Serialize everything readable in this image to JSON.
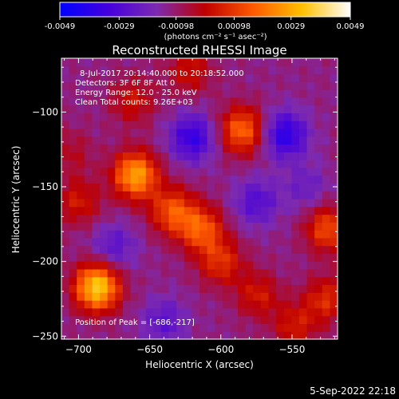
{
  "colorbar": {
    "ticks": [
      "-0.0049",
      "-0.0029",
      "-0.00098",
      "0.00098",
      "0.0029",
      "0.0049"
    ],
    "units_line": "(photons cm⁻² s⁻¹ asec⁻²)"
  },
  "annotations": {
    "time_range": "8-Jul-2017 20:14:40.000 to 20:18:52.000",
    "detectors": "Detectors: 3F 6F 8F Att 0",
    "energy": "Energy Range: 12.0 - 25.0 keV",
    "clean": "Clean     Total counts: 9.26E+03",
    "peak": "Position of Peak = [-686,-217]"
  },
  "footer": {
    "timestamp": "5-Sep-2022 22:18"
  },
  "colors": {
    "background": "#000000",
    "axes": "#ffffff"
  },
  "chart_data": {
    "type": "heatmap",
    "title": "Reconstructed RHESSI Image",
    "xlabel": "Heliocentric X (arcsec)",
    "ylabel": "Heliocentric Y (arcsec)",
    "xlim": [
      -712,
      -518
    ],
    "ylim": [
      -252,
      -64
    ],
    "x_ticks": [
      -700,
      -650,
      -600,
      -550
    ],
    "y_ticks": [
      -250,
      -200,
      -150,
      -100
    ],
    "colorbar_range": [
      -0.0049,
      0.0049
    ],
    "colormap": [
      "#0000ff",
      "#4400dd",
      "#7d2ab0",
      "#be0000",
      "#ff5a00",
      "#ffc000",
      "#ffffff"
    ],
    "peak_position": [
      -686,
      -217
    ],
    "sources": [
      {
        "x": -687,
        "y": -217,
        "amp": 0.0048
      },
      {
        "x": -660,
        "y": -142,
        "amp": 0.004
      },
      {
        "x": -634,
        "y": -166,
        "amp": 0.0026
      },
      {
        "x": -614,
        "y": -178,
        "amp": 0.0027
      },
      {
        "x": -585,
        "y": -112,
        "amp": 0.003
      },
      {
        "x": -600,
        "y": -200,
        "amp": 0.002
      },
      {
        "x": -574,
        "y": -222,
        "amp": 0.0016
      },
      {
        "x": -525,
        "y": -178,
        "amp": 0.0025
      },
      {
        "x": -526,
        "y": -225,
        "amp": 0.0019
      },
      {
        "x": -548,
        "y": -243,
        "amp": 0.0016
      },
      {
        "x": -662,
        "y": -92,
        "amp": 0.0015
      },
      {
        "x": -622,
        "y": -72,
        "amp": 0.0015
      },
      {
        "x": -700,
        "y": -160,
        "amp": 0.0016
      },
      {
        "x": -705,
        "y": -127,
        "amp": 0.0009
      },
      {
        "x": -620,
        "y": -117,
        "amp": -0.0024
      },
      {
        "x": -555,
        "y": -115,
        "amp": -0.0026
      },
      {
        "x": -675,
        "y": -190,
        "amp": -0.0014
      },
      {
        "x": -575,
        "y": -160,
        "amp": -0.0016
      },
      {
        "x": -640,
        "y": -240,
        "amp": -0.0014
      },
      {
        "x": -540,
        "y": -150,
        "amp": -0.001
      }
    ]
  }
}
